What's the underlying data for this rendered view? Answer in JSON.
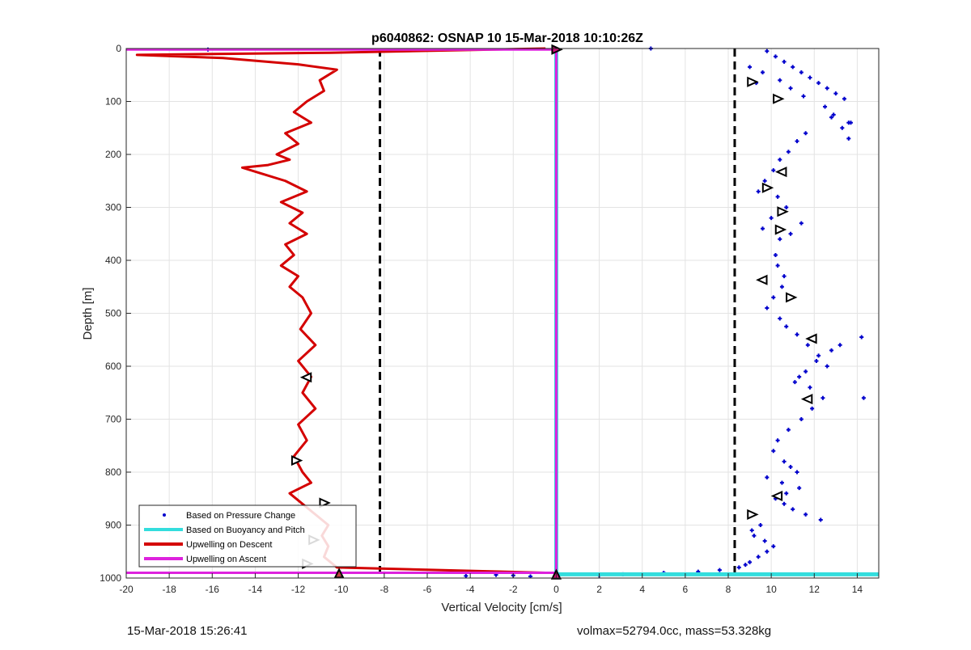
{
  "chart_data": {
    "type": "line",
    "title": "p6040862: OSNAP 10 15-Mar-2018 10:10:26Z",
    "xlabel": "Vertical Velocity [cm/s]",
    "ylabel": "Depth [m]",
    "xlim": [
      -20,
      15
    ],
    "ylim": [
      1000,
      0
    ],
    "y_reversed": true,
    "grid": true,
    "x_ticks": [
      "-20",
      "-18",
      "-16",
      "-14",
      "-12",
      "-10",
      "-8",
      "-6",
      "-4",
      "-2",
      "0",
      "2",
      "4",
      "6",
      "8",
      "10",
      "12",
      "14"
    ],
    "x_tick_values": [
      -20,
      -18,
      -16,
      -14,
      -12,
      -10,
      -8,
      -6,
      -4,
      -2,
      0,
      2,
      4,
      6,
      8,
      10,
      12,
      14
    ],
    "y_ticks": [
      "0",
      "100",
      "200",
      "300",
      "400",
      "500",
      "600",
      "700",
      "800",
      "900",
      "1000"
    ],
    "y_tick_values": [
      0,
      100,
      200,
      300,
      400,
      500,
      600,
      700,
      800,
      900,
      1000
    ],
    "legend_position": "bottom-left",
    "legend": [
      {
        "label": "Based on Pressure Change",
        "style": "dot",
        "color": "#0000cc"
      },
      {
        "label": "Based on Buoyancy and Pitch",
        "style": "line",
        "color": "#33dddd"
      },
      {
        "label": "Upwelling on Descent",
        "style": "line",
        "color": "#d40000"
      },
      {
        "label": "Upwelling on Ascent",
        "style": "line",
        "color": "#dd22dd"
      }
    ],
    "series": [
      {
        "name": "Based on Pressure Change",
        "type": "scatter",
        "color": "#0000cc",
        "x": [
          9.8,
          10.2,
          10.6,
          11.0,
          11.4,
          11.8,
          12.2,
          12.6,
          13.0,
          13.4,
          13.6,
          9.6,
          9.3,
          9.0,
          10.4,
          10.9,
          11.5,
          12.5,
          12.9,
          13.3,
          13.6,
          13.7,
          12.8,
          11.6,
          11.2,
          10.8,
          10.4,
          10.1,
          9.7,
          9.4,
          10.3,
          10.7,
          10.0,
          9.6,
          10.4,
          10.9,
          11.4,
          10.2,
          10.3,
          10.6,
          10.5,
          10.1,
          9.8,
          10.4,
          10.7,
          11.2,
          11.7,
          12.2,
          12.6,
          14.2,
          11.3,
          11.8,
          12.4,
          11.1,
          11.6,
          12.1,
          12.8,
          13.2,
          14.3,
          11.9,
          11.4,
          10.8,
          10.3,
          10.1,
          10.6,
          11.2,
          10.5,
          9.8,
          10.9,
          11.3,
          10.7,
          10.2,
          10.6,
          11.0,
          11.6,
          12.3,
          9.5,
          9.1,
          9.2,
          9.7,
          10.1,
          9.8,
          9.4,
          9.0,
          8.8,
          8.5,
          7.6,
          6.6,
          5.0,
          3.1,
          2.0,
          -2.0,
          -2.8,
          -4.2,
          -1.2,
          -16.2,
          4.4
        ],
        "y": [
          5,
          15,
          25,
          35,
          45,
          55,
          65,
          75,
          85,
          95,
          140,
          45,
          65,
          35,
          60,
          75,
          90,
          110,
          125,
          150,
          170,
          140,
          130,
          160,
          175,
          195,
          210,
          230,
          250,
          270,
          280,
          300,
          320,
          340,
          360,
          350,
          330,
          390,
          410,
          430,
          450,
          470,
          490,
          510,
          525,
          540,
          560,
          580,
          600,
          545,
          620,
          640,
          660,
          630,
          610,
          590,
          570,
          560,
          660,
          680,
          700,
          720,
          740,
          760,
          780,
          800,
          820,
          810,
          790,
          830,
          840,
          850,
          860,
          870,
          880,
          890,
          900,
          910,
          920,
          930,
          940,
          950,
          960,
          970,
          975,
          980,
          985,
          988,
          990,
          993,
          995,
          995,
          994,
          996,
          997,
          2,
          0
        ]
      },
      {
        "name": "Based on Buoyancy and Pitch",
        "type": "line",
        "color": "#33dddd",
        "x": [
          0,
          0,
          0,
          15
        ],
        "y": [
          0,
          993,
          993,
          993
        ]
      },
      {
        "name": "Upwelling on Descent",
        "type": "line",
        "color": "#d40000",
        "x": [
          -0.5,
          -10.5,
          -19.5,
          -15.5,
          -12.0,
          -10.2,
          -11.0,
          -10.8,
          -11.6,
          -12.2,
          -11.4,
          -12.6,
          -12.0,
          -13.0,
          -12.4,
          -13.4,
          -14.6,
          -13.8,
          -12.6,
          -11.6,
          -12.8,
          -11.8,
          -12.4,
          -11.6,
          -12.6,
          -12.2,
          -12.8,
          -12.0,
          -12.4,
          -11.8,
          -11.4,
          -11.9,
          -11.2,
          -12.0,
          -11.4,
          -11.8,
          -11.2,
          -12.0,
          -11.6,
          -12.2,
          -11.8,
          -11.4,
          -12.4,
          -11.8,
          -11.2,
          -10.6,
          -10.9,
          -10.6,
          -10.8,
          -10.2,
          -0.5
        ],
        "y": [
          0,
          8,
          12,
          18,
          30,
          40,
          60,
          80,
          100,
          120,
          140,
          160,
          180,
          200,
          210,
          220,
          225,
          235,
          250,
          270,
          290,
          310,
          330,
          350,
          370,
          390,
          410,
          430,
          450,
          470,
          500,
          530,
          560,
          590,
          620,
          650,
          680,
          710,
          740,
          770,
          800,
          820,
          840,
          860,
          880,
          900,
          920,
          940,
          960,
          980,
          990
        ]
      },
      {
        "name": "Upwelling on Ascent",
        "type": "line",
        "color": "#dd22dd",
        "x": [
          -20,
          0,
          0,
          -20
        ],
        "y": [
          2,
          2,
          990,
          990
        ]
      }
    ],
    "reference_lines": [
      {
        "style": "dashed",
        "color": "#000000",
        "x": -8.2
      },
      {
        "style": "dashed",
        "color": "#000000",
        "x": 8.3
      }
    ],
    "markers": [
      {
        "symbol": "triangle-right",
        "x": 0,
        "y": 2
      },
      {
        "symbol": "triangle-up",
        "x": 0,
        "y": 995
      },
      {
        "symbol": "triangle-up",
        "x": -10.1,
        "y": 993
      },
      {
        "symbol": "triangle-left",
        "x": -11.6,
        "y": 621
      },
      {
        "symbol": "triangle-right",
        "x": -12.1,
        "y": 778
      },
      {
        "symbol": "triangle-right",
        "x": -10.8,
        "y": 858
      },
      {
        "symbol": "triangle-right",
        "x": -11.3,
        "y": 928
      },
      {
        "symbol": "triangle-right",
        "x": -11.6,
        "y": 973
      },
      {
        "symbol": "triangle-right",
        "x": 9.1,
        "y": 63
      },
      {
        "symbol": "triangle-right",
        "x": 10.3,
        "y": 95
      },
      {
        "symbol": "triangle-left",
        "x": 10.5,
        "y": 233
      },
      {
        "symbol": "triangle-right",
        "x": 9.8,
        "y": 263
      },
      {
        "symbol": "triangle-right",
        "x": 10.5,
        "y": 308
      },
      {
        "symbol": "triangle-right",
        "x": 10.4,
        "y": 342
      },
      {
        "symbol": "triangle-left",
        "x": 9.6,
        "y": 437
      },
      {
        "symbol": "triangle-right",
        "x": 10.9,
        "y": 470
      },
      {
        "symbol": "triangle-left",
        "x": 11.9,
        "y": 548
      },
      {
        "symbol": "triangle-left",
        "x": 11.7,
        "y": 662
      },
      {
        "symbol": "triangle-left",
        "x": 10.3,
        "y": 845
      },
      {
        "symbol": "triangle-right",
        "x": 9.1,
        "y": 880
      }
    ]
  },
  "footer": {
    "left": "15-Mar-2018 15:26:41",
    "right": "volmax=52794.0cc, mass=53.328kg"
  }
}
